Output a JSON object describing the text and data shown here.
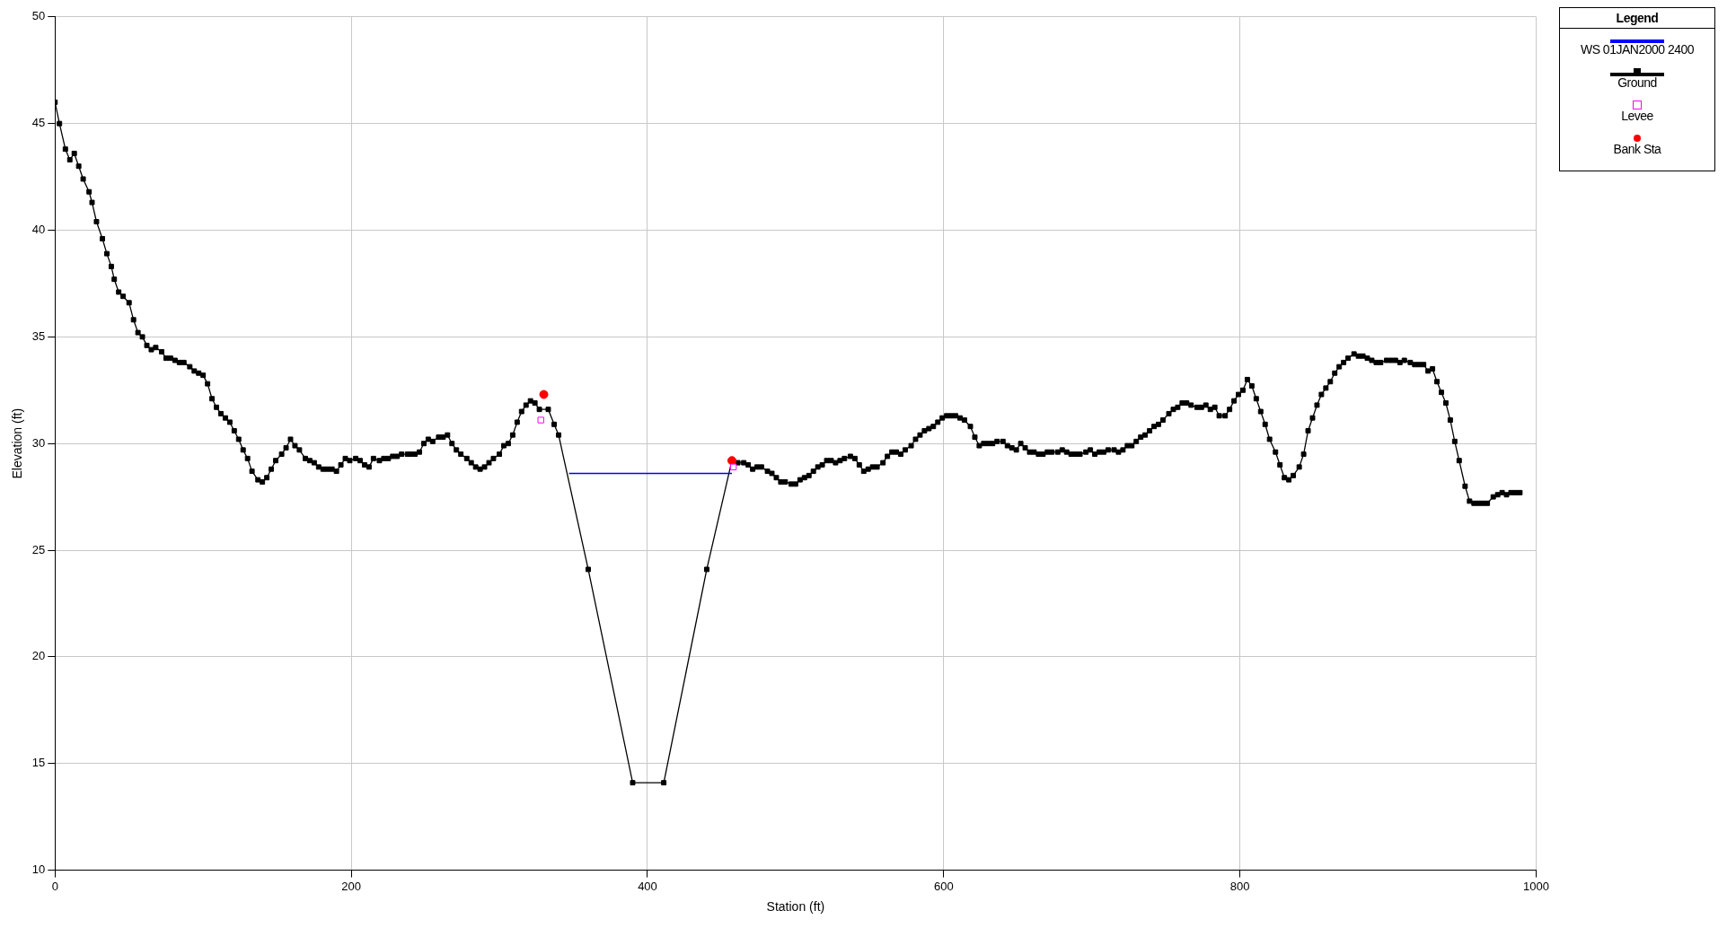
{
  "chart_data": {
    "type": "line",
    "xlabel": "Station (ft)",
    "ylabel": "Elevation (ft)",
    "legend_title": "Legend",
    "legend": "right",
    "grid": true,
    "xlim": [
      0,
      1000
    ],
    "xticks": [
      0,
      200,
      400,
      600,
      800,
      1000
    ],
    "ylim": [
      10,
      50
    ],
    "yticks": [
      10,
      15,
      20,
      25,
      30,
      35,
      40,
      45,
      50
    ],
    "series": [
      {
        "name": "WS 01JAN2000 2400",
        "type": "line",
        "marker": "none",
        "color": "#0000ff",
        "x": [
          347,
          457
        ],
        "values": [
          28.6,
          28.6
        ]
      },
      {
        "name": "Ground",
        "type": "line",
        "marker": "square",
        "color": "#000000",
        "x": [
          0,
          3,
          7,
          10,
          13,
          16,
          19,
          23,
          25,
          28,
          32,
          35,
          38,
          40,
          43,
          46,
          50,
          53,
          56,
          59,
          62,
          65,
          68,
          72,
          75,
          78,
          81,
          84,
          87,
          91,
          94,
          97,
          100,
          103,
          106,
          109,
          112,
          115,
          118,
          121,
          124,
          127,
          130,
          133,
          137,
          140,
          143,
          146,
          149,
          153,
          156,
          159,
          162,
          165,
          169,
          172,
          175,
          178,
          181,
          184,
          187,
          190,
          193,
          196,
          199,
          203,
          206,
          209,
          212,
          215,
          219,
          222,
          225,
          228,
          231,
          234,
          238,
          240,
          243,
          246,
          249,
          252,
          255,
          259,
          262,
          265,
          268,
          271,
          274,
          278,
          281,
          284,
          287,
          290,
          293,
          296,
          300,
          303,
          306,
          309,
          312,
          315,
          318,
          321,
          324,
          327,
          333,
          337,
          340,
          360,
          390,
          411,
          440,
          457,
          461,
          465,
          468,
          471,
          474,
          477,
          481,
          484,
          487,
          490,
          493,
          497,
          500,
          503,
          506,
          509,
          512,
          515,
          518,
          521,
          524,
          527,
          530,
          533,
          537,
          540,
          543,
          546,
          549,
          552,
          555,
          559,
          562,
          565,
          568,
          571,
          574,
          578,
          581,
          584,
          587,
          590,
          593,
          596,
          599,
          602,
          605,
          608,
          611,
          614,
          618,
          621,
          624,
          627,
          630,
          633,
          636,
          640,
          643,
          646,
          649,
          652,
          655,
          658,
          661,
          664,
          667,
          670,
          673,
          677,
          680,
          683,
          686,
          689,
          692,
          696,
          699,
          702,
          705,
          708,
          711,
          715,
          718,
          721,
          724,
          727,
          730,
          733,
          736,
          739,
          742,
          745,
          748,
          752,
          755,
          758,
          761,
          764,
          767,
          771,
          774,
          777,
          780,
          783,
          786,
          790,
          793,
          796,
          799,
          802,
          805,
          808,
          811,
          814,
          817,
          820,
          824,
          827,
          830,
          833,
          836,
          840,
          843,
          846,
          849,
          852,
          855,
          858,
          861,
          864,
          867,
          870,
          873,
          877,
          880,
          883,
          886,
          889,
          892,
          895,
          899,
          902,
          905,
          908,
          911,
          915,
          918,
          921,
          924,
          927,
          930,
          933,
          936,
          939,
          942,
          945,
          948,
          952,
          955,
          958,
          961,
          964,
          967,
          971,
          974,
          977,
          980,
          983,
          986,
          989
        ],
        "values": [
          46.0,
          45.0,
          43.8,
          43.3,
          43.6,
          43.0,
          42.4,
          41.8,
          41.3,
          40.4,
          39.6,
          38.9,
          38.3,
          37.7,
          37.1,
          36.9,
          36.6,
          35.8,
          35.2,
          35.0,
          34.6,
          34.4,
          34.5,
          34.3,
          34.0,
          34.0,
          33.9,
          33.8,
          33.8,
          33.6,
          33.4,
          33.3,
          33.2,
          32.8,
          32.1,
          31.7,
          31.4,
          31.2,
          31.0,
          30.6,
          30.2,
          29.7,
          29.3,
          28.7,
          28.3,
          28.2,
          28.4,
          28.8,
          29.2,
          29.5,
          29.8,
          30.2,
          29.9,
          29.7,
          29.3,
          29.2,
          29.1,
          28.9,
          28.8,
          28.8,
          28.8,
          28.7,
          29.0,
          29.3,
          29.2,
          29.3,
          29.2,
          29.0,
          28.9,
          29.3,
          29.2,
          29.3,
          29.3,
          29.4,
          29.4,
          29.5,
          29.5,
          29.5,
          29.5,
          29.6,
          30.0,
          30.2,
          30.1,
          30.3,
          30.3,
          30.4,
          30.0,
          29.7,
          29.5,
          29.3,
          29.1,
          28.9,
          28.8,
          28.9,
          29.1,
          29.3,
          29.5,
          29.9,
          30.0,
          30.4,
          31.0,
          31.5,
          31.8,
          32.0,
          31.9,
          31.6,
          31.6,
          30.9,
          30.4,
          24.1,
          14.1,
          14.1,
          24.1,
          29.2,
          29.1,
          29.1,
          29.0,
          28.8,
          28.9,
          28.9,
          28.7,
          28.6,
          28.4,
          28.2,
          28.2,
          28.1,
          28.1,
          28.3,
          28.4,
          28.5,
          28.7,
          28.9,
          29.0,
          29.2,
          29.2,
          29.1,
          29.2,
          29.3,
          29.4,
          29.3,
          29.0,
          28.7,
          28.8,
          28.9,
          28.9,
          29.1,
          29.4,
          29.6,
          29.6,
          29.5,
          29.7,
          29.9,
          30.2,
          30.4,
          30.6,
          30.7,
          30.8,
          31.0,
          31.2,
          31.3,
          31.3,
          31.3,
          31.2,
          31.1,
          30.8,
          30.3,
          29.9,
          30.0,
          30.0,
          30.0,
          30.1,
          30.1,
          29.9,
          29.8,
          29.7,
          30.0,
          29.8,
          29.6,
          29.6,
          29.5,
          29.5,
          29.6,
          29.6,
          29.6,
          29.7,
          29.6,
          29.5,
          29.5,
          29.5,
          29.6,
          29.7,
          29.5,
          29.6,
          29.6,
          29.7,
          29.7,
          29.6,
          29.7,
          29.9,
          29.9,
          30.1,
          30.3,
          30.4,
          30.6,
          30.8,
          30.9,
          31.1,
          31.4,
          31.6,
          31.7,
          31.9,
          31.9,
          31.8,
          31.7,
          31.7,
          31.8,
          31.6,
          31.7,
          31.3,
          31.3,
          31.6,
          32.0,
          32.3,
          32.5,
          33.0,
          32.7,
          32.1,
          31.5,
          30.9,
          30.2,
          29.6,
          29.0,
          28.4,
          28.3,
          28.5,
          28.9,
          29.5,
          30.6,
          31.2,
          31.8,
          32.3,
          32.6,
          32.9,
          33.3,
          33.6,
          33.8,
          34.0,
          34.2,
          34.1,
          34.1,
          34.0,
          33.9,
          33.8,
          33.8,
          33.9,
          33.9,
          33.9,
          33.8,
          33.9,
          33.8,
          33.7,
          33.7,
          33.7,
          33.4,
          33.5,
          32.9,
          32.4,
          31.9,
          31.1,
          30.1,
          29.2,
          28.0,
          27.3,
          27.2,
          27.2,
          27.2,
          27.2,
          27.5,
          27.6,
          27.7,
          27.6,
          27.7,
          27.7,
          27.7
        ]
      },
      {
        "name": "Levee",
        "type": "scatter",
        "marker": "square",
        "color": "#ff00ff",
        "x": [
          328,
          458
        ],
        "values": [
          31.1,
          28.9
        ]
      },
      {
        "name": "Bank Sta",
        "type": "scatter",
        "marker": "circle",
        "color": "#ff0000",
        "x": [
          330,
          457
        ],
        "values": [
          32.3,
          29.2
        ]
      }
    ]
  }
}
